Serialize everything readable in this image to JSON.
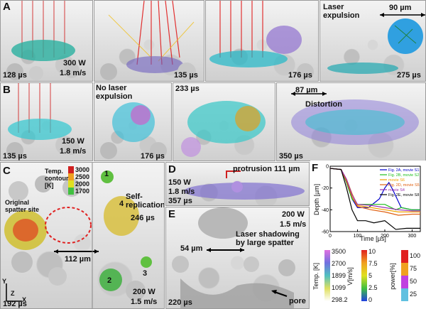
{
  "panels": {
    "A": {
      "letter": "A",
      "times": [
        "128 µs",
        "135 µs",
        "176 µs",
        "275 µs"
      ],
      "conditions": [
        "300 W",
        "1.8 m/s"
      ],
      "note": "Laser expulsion",
      "scale": "90 µm"
    },
    "B": {
      "letter": "B",
      "times": [
        "135 µs",
        "176 µs",
        "233 µs",
        "350 µs"
      ],
      "conditions": [
        "150 W",
        "1.8 m/s"
      ],
      "note": "No laser expulsion",
      "scale": "87 µm",
      "note2": "Distortion"
    },
    "C": {
      "letter": "C",
      "time_left": "192 µs",
      "time_right": "246 µs",
      "conditions": [
        "200 W",
        "1.5 m/s"
      ],
      "label_site": "Original spatter site",
      "label_self": "Self-replication",
      "scale": "112 µm",
      "particle_numbers": [
        "1",
        "2",
        "3",
        "4"
      ],
      "colorbar_title": "Temp. contour [K]",
      "colorbar_ticks": [
        "3000",
        "2500",
        "2000",
        "1700"
      ],
      "axes": [
        "Y",
        "X",
        "Z"
      ]
    },
    "D": {
      "letter": "D",
      "label": "protrusion 111 µm",
      "conditions": [
        "150 W",
        "1.8 m/s",
        "357 µs"
      ]
    },
    "E": {
      "letter": "E",
      "conditions": [
        "200 W",
        "1.5 m/s"
      ],
      "label": "Laser shadowing by large spatter",
      "scale": "54 µm",
      "time": "220 µs",
      "pore": "pore"
    }
  },
  "colors": {
    "series_2A": "#0000cc",
    "series_2B": "#1fbf1f",
    "series_S6": "#f0a000",
    "series_2D": "#e06010",
    "series_S4": "#9a30b0",
    "series_2E": "#000000"
  },
  "chart_data": {
    "type": "line",
    "panel_letter": "F",
    "xlabel": "Time [µs]",
    "ylabel": "Depth [µm]",
    "xlim": [
      0,
      330
    ],
    "ylim": [
      -60,
      0
    ],
    "xticks": [
      0,
      100,
      200,
      300
    ],
    "yticks": [
      0,
      -20,
      -40,
      -60
    ],
    "legend_position": "top-right",
    "series": [
      {
        "name": "Fig. 2A, movie S1",
        "color": "#0000cc",
        "x": [
          0,
          40,
          60,
          80,
          100,
          140,
          180,
          200,
          215,
          230,
          260,
          300,
          330
        ],
        "y": [
          -2,
          -3,
          -15,
          -30,
          -38,
          -38,
          -30,
          -20,
          -15,
          -22,
          -38,
          -40,
          -40
        ]
      },
      {
        "name": "Fig. 2B, movie S2",
        "color": "#1fbf1f",
        "x": [
          0,
          40,
          60,
          80,
          100,
          200,
          240,
          260,
          300,
          330
        ],
        "y": [
          -2,
          -3,
          -15,
          -30,
          -35,
          -35,
          -40,
          -38,
          -40,
          -40
        ]
      },
      {
        "name": "movie S6",
        "color": "#f0a000",
        "x": [
          0,
          40,
          60,
          80,
          100,
          150,
          200,
          250,
          300,
          330
        ],
        "y": [
          -2,
          -3,
          -12,
          -25,
          -36,
          -38,
          -40,
          -42,
          -42,
          -42
        ]
      },
      {
        "name": "Fig. 2D, movie S5",
        "color": "#e06010",
        "x": [
          0,
          40,
          60,
          80,
          100,
          150,
          200,
          250,
          300,
          330
        ],
        "y": [
          -2,
          -3,
          -14,
          -28,
          -37,
          -40,
          -42,
          -45,
          -44,
          -44
        ]
      },
      {
        "name": "movie S4",
        "color": "#9a30b0",
        "x": [
          0,
          40,
          60,
          80,
          100,
          150,
          200,
          250,
          300,
          330
        ],
        "y": [
          -2,
          -3,
          -12,
          -26,
          -35,
          -36,
          -38,
          -40,
          -41,
          -41
        ]
      },
      {
        "name": "Fig. 2E, movie S8",
        "color": "#000000",
        "x": [
          0,
          40,
          60,
          80,
          100,
          130,
          160,
          200,
          240,
          280,
          330
        ],
        "y": [
          -2,
          -3,
          -20,
          -40,
          -50,
          -50,
          -52,
          -50,
          -58,
          -57,
          -57
        ]
      }
    ]
  },
  "legends": {
    "temp": {
      "title": "Temp. [K]",
      "ticks": [
        "3500",
        "2700",
        "1899",
        "1099",
        "298.2"
      ]
    },
    "velocity": {
      "title": "V[m/s]",
      "ticks": [
        "10",
        "7.5",
        "5",
        "2.5",
        "0"
      ]
    },
    "power": {
      "title": "power[%]",
      "ticks": [
        "100",
        "75",
        "50",
        "25"
      ]
    }
  }
}
